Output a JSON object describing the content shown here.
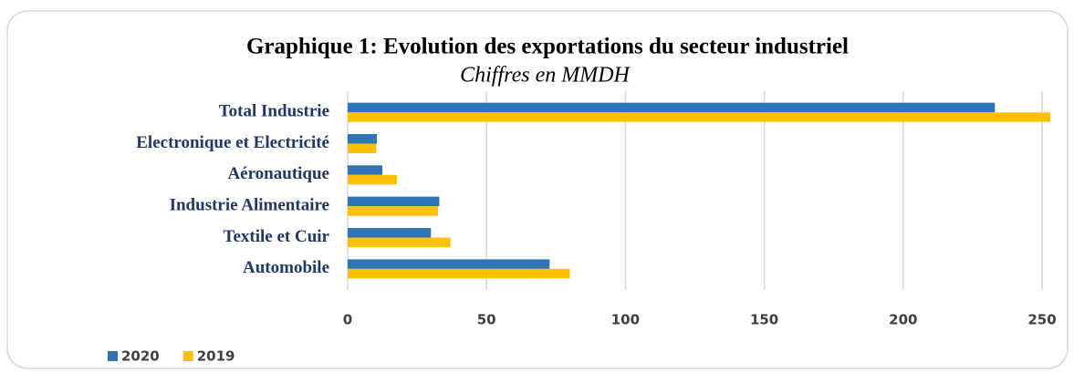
{
  "chart_data": {
    "type": "bar",
    "orientation": "horizontal",
    "title": "Graphique 1: Evolution des exportations du secteur industriel",
    "subtitle": "Chiffres en MMDH",
    "categories": [
      "Total Industrie",
      "Electronique et Electricité",
      "Aéronautique",
      "Industrie Alimentaire",
      "Textile et Cuir",
      "Automobile"
    ],
    "series": [
      {
        "name": "2020",
        "color": "#2e75b6",
        "values": [
          233,
          10.5,
          12.5,
          33,
          30,
          72.7
        ]
      },
      {
        "name": "2019",
        "color": "#ffc000",
        "values": [
          253,
          10.3,
          17.7,
          32.5,
          37,
          80
        ]
      }
    ],
    "xlim": [
      0,
      250
    ],
    "xticks": [
      0,
      50,
      100,
      150,
      200,
      250
    ],
    "grid": true,
    "legend": "bottom-left"
  }
}
